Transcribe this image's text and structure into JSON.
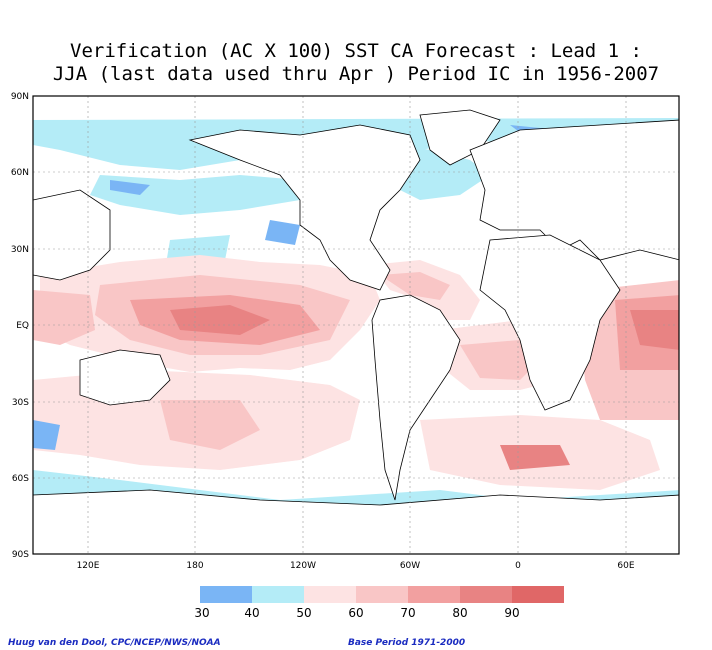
{
  "title_line1": "Verification (AC X 100) SST CA Forecast : Lead 1 :",
  "title_line2": "JJA (last data used thru Apr ) Period IC in 1956-2007",
  "lat_labels": [
    "90N",
    "60N",
    "30N",
    "EQ",
    "30S",
    "60S",
    "90S"
  ],
  "lon_labels": [
    "120E",
    "180",
    "120W",
    "60W",
    "0",
    "60E"
  ],
  "legend": {
    "colors": [
      "#7ab5f5",
      "#b4ecf7",
      "#fde3e3",
      "#f9c6c6",
      "#f2a0a0",
      "#e88383",
      "#e06767"
    ],
    "labels": [
      "30",
      "40",
      "50",
      "60",
      "70",
      "80",
      "90"
    ]
  },
  "credit_left": "Huug van den Dool, CPC/NCEP/NWS/NOAA",
  "credit_right": "Base Period 1971-2000"
}
